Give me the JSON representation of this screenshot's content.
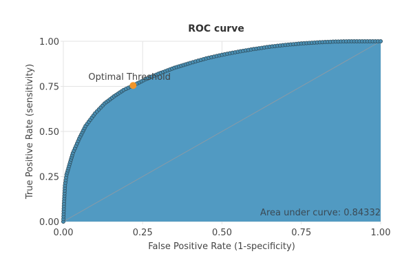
{
  "chart_data": {
    "type": "area",
    "title": "ROC curve",
    "xlabel": "False Positive Rate (1-specificity)",
    "ylabel": "True Positive Rate (sensitivity)",
    "xlim": [
      0,
      1
    ],
    "ylim": [
      0,
      1
    ],
    "grid": true,
    "xticks": [
      "0.00",
      "0.25",
      "0.50",
      "0.75",
      "1.00"
    ],
    "yticks": [
      "0.00",
      "0.25",
      "0.50",
      "0.75",
      "1.00"
    ],
    "series": [
      {
        "name": "ROC",
        "x": [
          0,
          0.002,
          0.005,
          0.01,
          0.02,
          0.03,
          0.05,
          0.07,
          0.1,
          0.13,
          0.16,
          0.19,
          0.22,
          0.26,
          0.3,
          0.35,
          0.4,
          0.45,
          0.5,
          0.55,
          0.6,
          0.65,
          0.7,
          0.75,
          0.8,
          0.85,
          0.9,
          0.95,
          1.0
        ],
        "y": [
          0,
          0.1,
          0.2,
          0.26,
          0.32,
          0.38,
          0.46,
          0.53,
          0.6,
          0.655,
          0.695,
          0.73,
          0.755,
          0.79,
          0.82,
          0.853,
          0.88,
          0.905,
          0.925,
          0.942,
          0.957,
          0.97,
          0.98,
          0.988,
          0.994,
          0.998,
          1.0,
          1.0,
          1.0
        ]
      }
    ],
    "optimal_point": {
      "x": 0.22,
      "y": 0.755,
      "label": "Optimal Threshold"
    },
    "annotation": "Area under curve: 0.84332",
    "colors": {
      "fill": "#519ac2",
      "marker": "#4a8fb3",
      "marker_edge": "#2f4f5f",
      "optimal": "#f0952a",
      "diagonal": "#8a9aa6",
      "grid": "#e3e3e3"
    }
  }
}
